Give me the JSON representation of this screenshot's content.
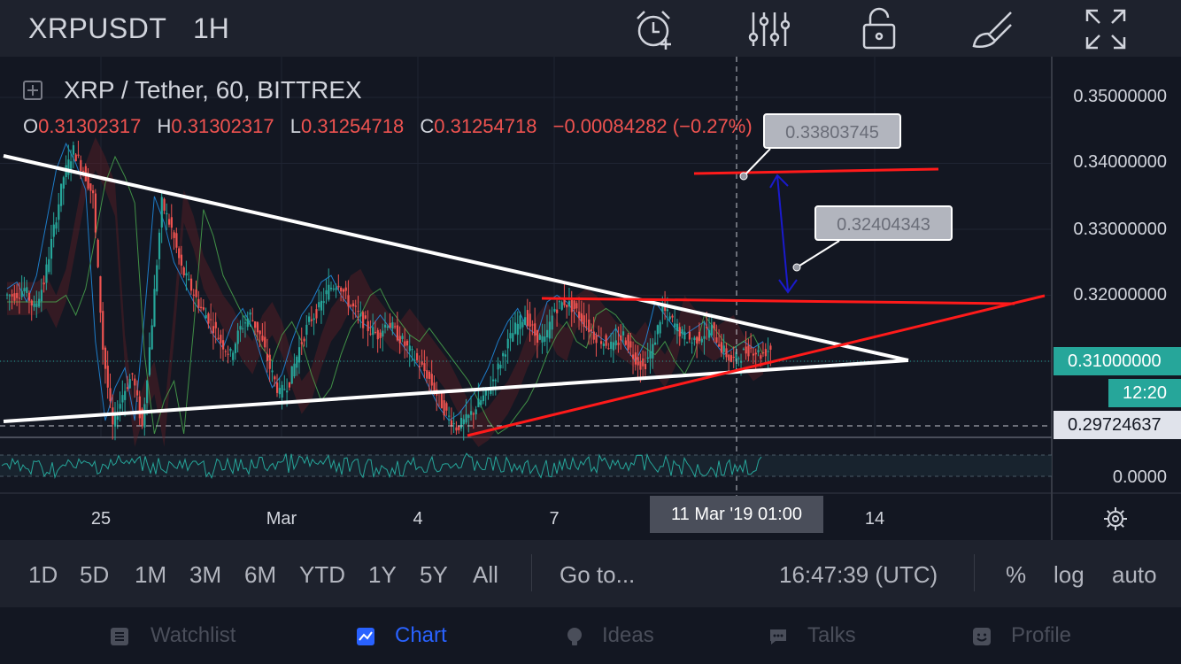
{
  "header": {
    "symbol": "XRPUSDT",
    "interval": "1H",
    "icons": [
      "alarm-add-icon",
      "indicators-icon",
      "lock-icon",
      "drawing-brush-icon",
      "fullscreen-icon"
    ]
  },
  "legend": {
    "title": "XRP / Tether, 60, BITTREX",
    "o_label": "O",
    "o_value": "0.31302317",
    "h_label": "H",
    "h_value": "0.31302317",
    "l_label": "L",
    "l_value": "0.31254718",
    "c_label": "C",
    "c_value": "0.31254718",
    "change": "−0.00084282 (−0.27%)"
  },
  "callouts": {
    "upper": "0.33803745",
    "lower": "0.32404343"
  },
  "price_axis": {
    "labels": [
      "0.35000000",
      "0.34000000",
      "0.33000000",
      "0.32000000"
    ],
    "current_price": "0.31000000",
    "countdown": "12:20",
    "crosshair_price": "0.29724637",
    "oscillator_zero": "0.0000"
  },
  "time_axis": {
    "labels": [
      "25",
      "Mar",
      "4",
      "7",
      "14"
    ],
    "crosshair_time": "11 Mar '19   01:00"
  },
  "range_bar": {
    "ranges": [
      "1D",
      "5D",
      "1M",
      "3M",
      "6M",
      "YTD",
      "1Y",
      "5Y",
      "All"
    ],
    "goto": "Go to...",
    "clock": "16:47:39 (UTC)",
    "percent": "%",
    "log": "log",
    "auto": "auto"
  },
  "nav": {
    "watchlist": "Watchlist",
    "chart": "Chart",
    "ideas": "Ideas",
    "talks": "Talks",
    "profile": "Profile"
  },
  "colors": {
    "background": "#131722",
    "panel": "#1e222d",
    "up": "#26a69a",
    "down": "#ef5350",
    "trendline": "#ffffff",
    "drawing_red": "#ff1a1a",
    "arrow_blue": "#1a1acc",
    "accent": "#2962ff"
  },
  "chart_data": {
    "type": "candlestick",
    "symbol": "XRP / Tether",
    "timeframe": "60",
    "exchange": "BITTREX",
    "y_axis_ticks": [
      0.35,
      0.34,
      0.33,
      0.32,
      0.31
    ],
    "ylim": [
      0.2945,
      0.3535
    ],
    "x_ticks": [
      "25",
      "Mar",
      "4",
      "7",
      "14"
    ],
    "last_price": 0.31,
    "crosshair": {
      "time": "11 Mar '19 01:00",
      "price": 0.29724637
    },
    "annotations": [
      {
        "type": "horizontal_segment",
        "color": "red",
        "price": 0.3385,
        "label": "0.33803745"
      },
      {
        "type": "arrow",
        "color": "blue",
        "from_price": 0.338,
        "to_price": 0.3202,
        "label": "0.32404343"
      },
      {
        "type": "horizontal_segment",
        "color": "red",
        "price": 0.3195
      },
      {
        "type": "triangle_resistance",
        "color": "white"
      },
      {
        "type": "triangle_support",
        "color": "white"
      },
      {
        "type": "rising_support",
        "color": "red"
      }
    ],
    "close_series": [
      0.32,
      0.321,
      0.318,
      0.322,
      0.33,
      0.338,
      0.342,
      0.339,
      0.335,
      0.312,
      0.3,
      0.305,
      0.308,
      0.3,
      0.316,
      0.334,
      0.33,
      0.324,
      0.321,
      0.318,
      0.316,
      0.313,
      0.311,
      0.315,
      0.317,
      0.314,
      0.309,
      0.305,
      0.307,
      0.312,
      0.316,
      0.318,
      0.321,
      0.322,
      0.319,
      0.317,
      0.315,
      0.314,
      0.316,
      0.314,
      0.312,
      0.31,
      0.308,
      0.305,
      0.302,
      0.3,
      0.301,
      0.303,
      0.305,
      0.308,
      0.312,
      0.315,
      0.317,
      0.314,
      0.313,
      0.318,
      0.319,
      0.318,
      0.316,
      0.314,
      0.313,
      0.312,
      0.314,
      0.311,
      0.309,
      0.312,
      0.318,
      0.316,
      0.314,
      0.313,
      0.314,
      0.315,
      0.312,
      0.31,
      0.311,
      0.312,
      0.311,
      0.312
    ],
    "oscillator": {
      "zero_label": "0.0000"
    }
  }
}
